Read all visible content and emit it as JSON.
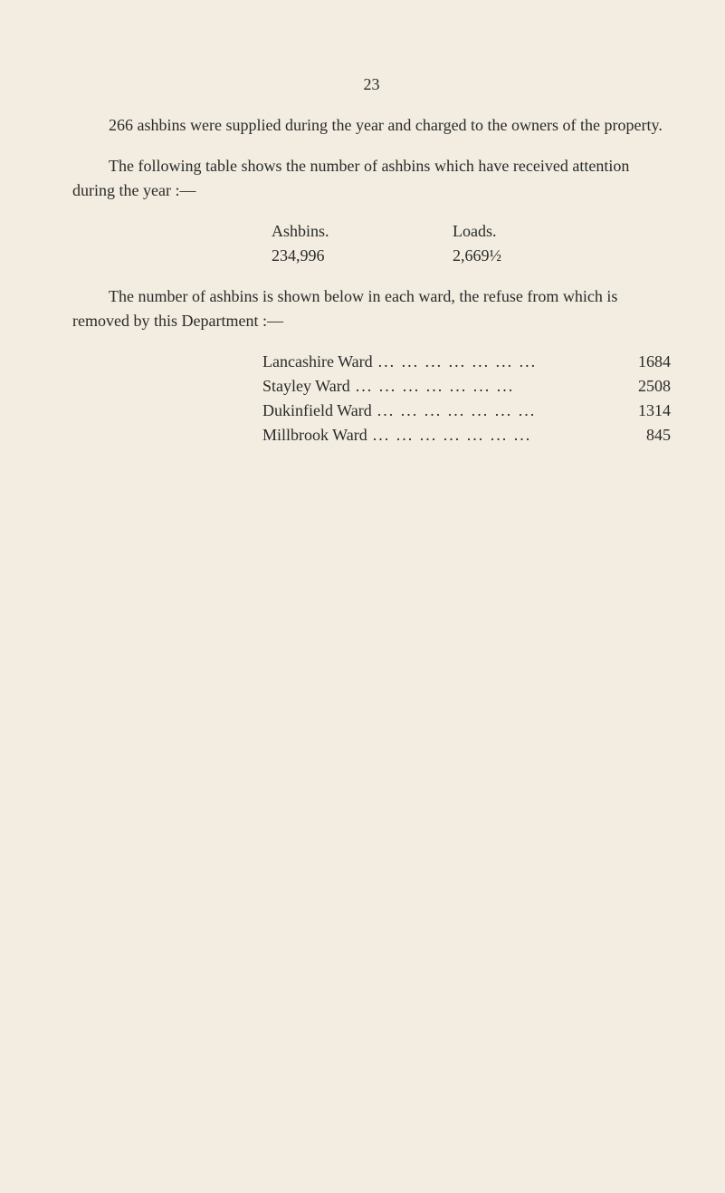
{
  "page": {
    "number": "23",
    "background_color": "#f2ede0",
    "text_color": "#2a2a2a",
    "font_family": "Georgia, 'Times New Roman', serif",
    "font_size_pt": 14
  },
  "paragraphs": {
    "p1": "266 ashbins were supplied during the year and charged to the owners of the property.",
    "p2": "The following table shows the number of ashbins which have re­ceived attention during the year :—",
    "p3": "The number of ashbins is shown below in each ward, the refuse from which is removed by this Department :—"
  },
  "ashbins_loads_table": {
    "type": "table",
    "columns": [
      "Ashbins.",
      "Loads."
    ],
    "rows": [
      [
        "234,996",
        "2,669½"
      ]
    ]
  },
  "ward_table": {
    "type": "table",
    "dots": "... ... ... ... ... ... ...",
    "rows": [
      {
        "name": "Lancashire Ward",
        "value": "1684"
      },
      {
        "name": "Stayley Ward",
        "value": "2508"
      },
      {
        "name": "Dukinfield Ward",
        "value": "1314"
      },
      {
        "name": "Millbrook Ward",
        "value": "845"
      }
    ]
  }
}
